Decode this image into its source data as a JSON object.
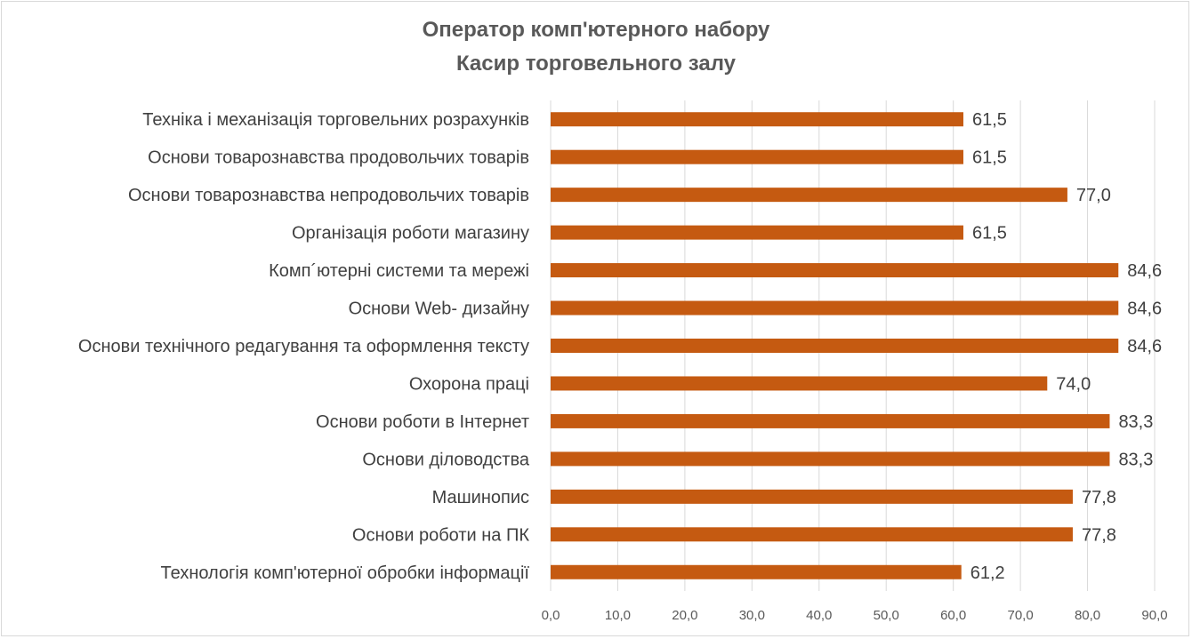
{
  "chart_data": {
    "type": "bar",
    "orientation": "horizontal",
    "title": [
      "Оператор комп'ютерного набору",
      "Касир торговельного залу"
    ],
    "categories": [
      "Техніка і механізація торговельних розрахунків",
      "Основи товарознавства продовольчих товарів",
      "Основи товарознавства непродовольчих товарів",
      "Організація роботи магазину",
      "Комп´ютерні системи та мережі",
      "Основи  Web- дизайну",
      "Основи технічного редагування та оформлення  тексту",
      "Охорона праці",
      "Основи роботи в Інтернет",
      "Основи діловодства",
      "Машинопис",
      "Основи роботи на ПК",
      "Технологія комп'ютерної обробки інформації"
    ],
    "values": [
      61.5,
      61.5,
      77.0,
      61.5,
      84.6,
      84.6,
      84.6,
      74.0,
      83.3,
      83.3,
      77.8,
      77.8,
      61.2
    ],
    "value_labels": [
      "61,5",
      "61,5",
      "77,0",
      "61,5",
      "84,6",
      "84,6",
      "84,6",
      "74,0",
      "83,3",
      "83,3",
      "77,8",
      "77,8",
      "61,2"
    ],
    "xlim": [
      0,
      90
    ],
    "xticks": [
      "0,0",
      "10,0",
      "20,0",
      "30,0",
      "40,0",
      "50,0",
      "60,0",
      "70,0",
      "80,0",
      "90,0"
    ],
    "grid": "vertical",
    "legend": "none",
    "bar_color": "#c55a11",
    "grid_color": "#d9d9d9",
    "text_color": "#404040"
  }
}
